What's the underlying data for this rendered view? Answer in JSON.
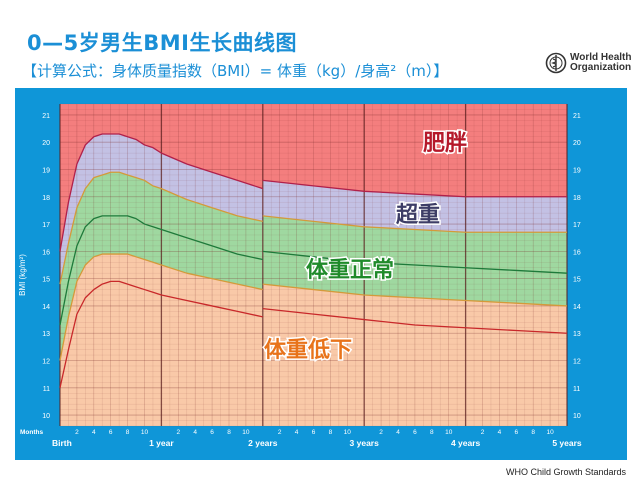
{
  "header": {
    "title": "0—5岁男生BMI生长曲线图",
    "subtitle": "【计算公式：身体质量指数（BMI）= 体重（kg）/身高²（m）】",
    "logo_text": [
      "World Health",
      "Organization"
    ]
  },
  "footer": {
    "credit": "WHO Child Growth Standards"
  },
  "colors": {
    "frame": "#0f96d8",
    "obese_band": "#f47e7e",
    "overweight_band": "#c3c1e4",
    "normal_band": "#9fd8a0",
    "underweight_band": "#f9c9a8",
    "obese_label": "#b5182a",
    "overweight_label": "#3d3d66",
    "normal_label": "#1f8a2a",
    "underweight_label": "#e8731a"
  },
  "chart_data": {
    "type": "line",
    "ylabel": "BMI (kg/m²)",
    "xlabel": "Months",
    "ylim": [
      9.6,
      21.4
    ],
    "xlim": [
      0,
      60
    ],
    "y_ticks": [
      10,
      11,
      12,
      13,
      14,
      15,
      16,
      17,
      18,
      19,
      20,
      21
    ],
    "month_tick_labels": [
      "2",
      "4",
      "6",
      "8",
      "10"
    ],
    "year_labels": [
      "Birth",
      "1 year",
      "2 years",
      "3 years",
      "4 years",
      "5 years"
    ],
    "grid": true,
    "band_labels": {
      "obese": "肥胖",
      "overweight": "超重",
      "normal": "体重正常",
      "underweight": "体重低下"
    },
    "segments": [
      {
        "x": [
          0,
          1,
          2,
          3,
          4,
          5,
          6,
          7,
          8,
          9,
          10,
          11,
          12,
          15,
          18,
          21,
          24
        ],
        "series": [
          {
            "values": [
              16.0,
              17.8,
              19.2,
              19.9,
              20.2,
              20.3,
              20.3,
              20.3,
              20.2,
              20.1,
              19.9,
              19.8,
              19.6,
              19.2,
              18.9,
              18.6,
              18.3
            ]
          },
          {
            "values": [
              14.8,
              16.3,
              17.6,
              18.3,
              18.7,
              18.8,
              18.9,
              18.9,
              18.8,
              18.7,
              18.6,
              18.4,
              18.3,
              17.9,
              17.6,
              17.3,
              17.1
            ]
          },
          {
            "values": [
              13.3,
              14.9,
              16.2,
              16.9,
              17.2,
              17.3,
              17.3,
              17.3,
              17.3,
              17.2,
              17.0,
              16.9,
              16.8,
              16.5,
              16.2,
              15.9,
              15.7
            ]
          },
          {
            "values": [
              12.0,
              13.6,
              14.9,
              15.5,
              15.8,
              15.9,
              15.9,
              15.9,
              15.9,
              15.8,
              15.7,
              15.6,
              15.5,
              15.2,
              15.0,
              14.8,
              14.6
            ]
          },
          {
            "values": [
              11.0,
              12.4,
              13.7,
              14.3,
              14.6,
              14.8,
              14.9,
              14.9,
              14.8,
              14.7,
              14.6,
              14.5,
              14.4,
              14.2,
              14.0,
              13.8,
              13.6
            ]
          }
        ]
      },
      {
        "x": [
          24,
          30,
          36,
          42,
          48,
          54,
          60
        ],
        "series": [
          {
            "values": [
              18.6,
              18.4,
              18.2,
              18.1,
              18.0,
              18.0,
              18.0
            ]
          },
          {
            "values": [
              17.3,
              17.1,
              16.9,
              16.8,
              16.7,
              16.7,
              16.7
            ]
          },
          {
            "values": [
              16.0,
              15.8,
              15.6,
              15.5,
              15.4,
              15.3,
              15.2
            ]
          },
          {
            "values": [
              14.8,
              14.6,
              14.4,
              14.3,
              14.2,
              14.1,
              14.0
            ]
          },
          {
            "values": [
              13.9,
              13.7,
              13.5,
              13.3,
              13.2,
              13.1,
              13.0
            ]
          }
        ]
      }
    ]
  }
}
